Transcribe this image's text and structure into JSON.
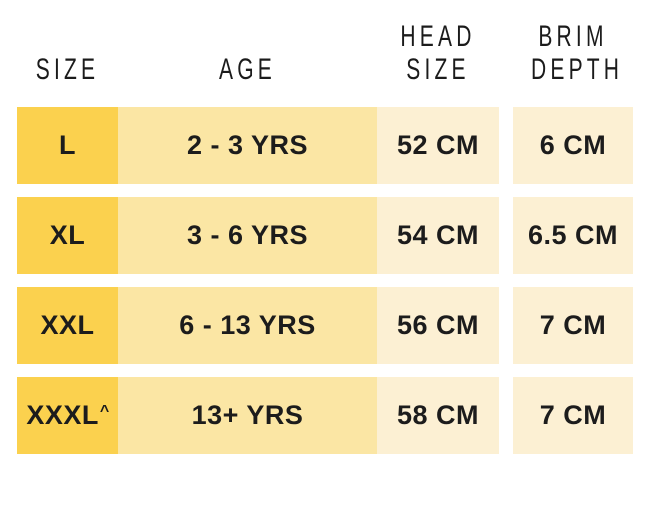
{
  "page": {
    "background": "#FFFFFF"
  },
  "colors": {
    "size_column_bg": "#FBD14E",
    "age_column_bg": "#FBE6A4",
    "value_column_bg": "#FCF0D3",
    "text": "#1C1C1C"
  },
  "header": {
    "columns": [
      "SIZE",
      "AGE",
      "HEAD\nSIZE",
      "BRIM\nDEPTH"
    ]
  },
  "rows": [
    {
      "size": "L",
      "size_note": "",
      "age": "2 - 3 YRS",
      "head_size": "52 CM",
      "brim_depth": "6 CM"
    },
    {
      "size": "XL",
      "size_note": "",
      "age": "3 - 6 YRS",
      "head_size": "54 CM",
      "brim_depth": "6.5 CM"
    },
    {
      "size": "XXL",
      "size_note": "",
      "age": "6 - 13 YRS",
      "head_size": "56 CM",
      "brim_depth": "7 CM"
    },
    {
      "size": "XXXL",
      "size_note": "^",
      "age": "13+ YRS",
      "head_size": "58 CM",
      "brim_depth": "7 CM"
    }
  ],
  "chart_data": {
    "type": "table",
    "title": "",
    "columns": [
      "SIZE",
      "AGE",
      "HEAD SIZE",
      "BRIM DEPTH"
    ],
    "rows": [
      [
        "L",
        "2 - 3 YRS",
        "52 CM",
        "6 CM"
      ],
      [
        "XL",
        "3 - 6 YRS",
        "54 CM",
        "6.5 CM"
      ],
      [
        "XXL",
        "6 - 13 YRS",
        "56 CM",
        "7 CM"
      ],
      [
        "XXXL^",
        "13+ YRS",
        "58 CM",
        "7 CM"
      ]
    ]
  }
}
